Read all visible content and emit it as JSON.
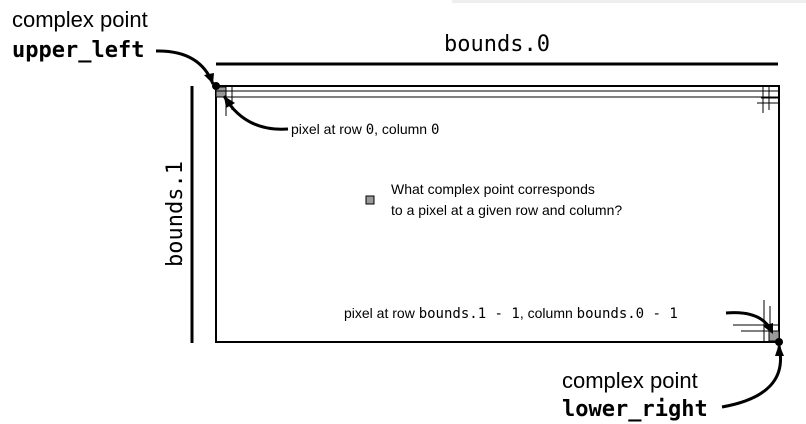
{
  "upper_left": {
    "caption": "complex point",
    "name": "upper_left"
  },
  "lower_right": {
    "caption": "complex point",
    "name": "lower_right"
  },
  "bounds_width_label": "bounds.0",
  "bounds_height_label": "bounds.1",
  "first_pixel": {
    "prefix": "pixel at row ",
    "row": "0",
    "middle": ", column ",
    "col": "0"
  },
  "last_pixel": {
    "prefix": "pixel at row ",
    "row": "bounds.1 - 1",
    "middle": ", column ",
    "col": "bounds.0 - 1"
  },
  "question": {
    "line1": "What complex point corresponds",
    "line2": "to a pixel at a given row and column?"
  },
  "colors": {
    "ink": "#000000",
    "pixel_fill": "#999999",
    "background": "#ffffff"
  }
}
